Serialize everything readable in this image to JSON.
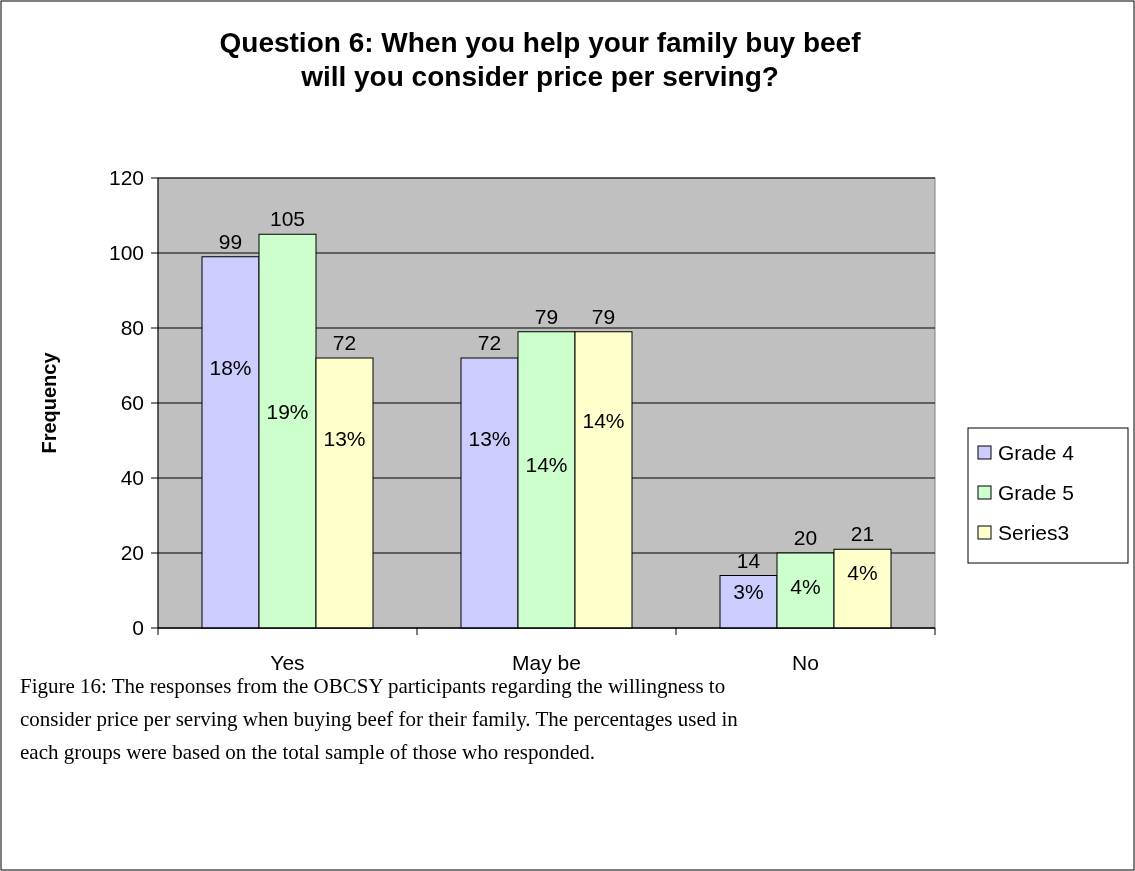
{
  "chart_data": {
    "type": "bar",
    "title": "Question 6: When you help your family buy beef\nwill you consider price per serving?",
    "ylabel": "Frequency",
    "categories": [
      "Yes",
      "May be",
      "No"
    ],
    "series": [
      {
        "name": "Grade 4",
        "color": "#ccccff",
        "values": [
          99,
          72,
          14
        ]
      },
      {
        "name": "Grade 5",
        "color": "#ccffcc",
        "values": [
          105,
          79,
          20
        ]
      },
      {
        "name": "Series3",
        "color": "#ffffcc",
        "values": [
          72,
          79,
          21
        ]
      }
    ],
    "ylim": [
      0,
      120
    ],
    "yticks": [
      0,
      20,
      40,
      60,
      80,
      100,
      120
    ],
    "grid": "y",
    "legend": "right",
    "data_labels": true,
    "annotations": [
      "18%",
      "19%",
      "13%",
      "13%",
      "14%",
      "14%",
      "3%",
      "4%",
      "4%",
      "Figure 16: The responses from the OBCSY participants regarding the willingness to consider price per serving when buying beef for their family. The percentages used in each groups were based on the total sample of those who responded."
    ]
  }
}
